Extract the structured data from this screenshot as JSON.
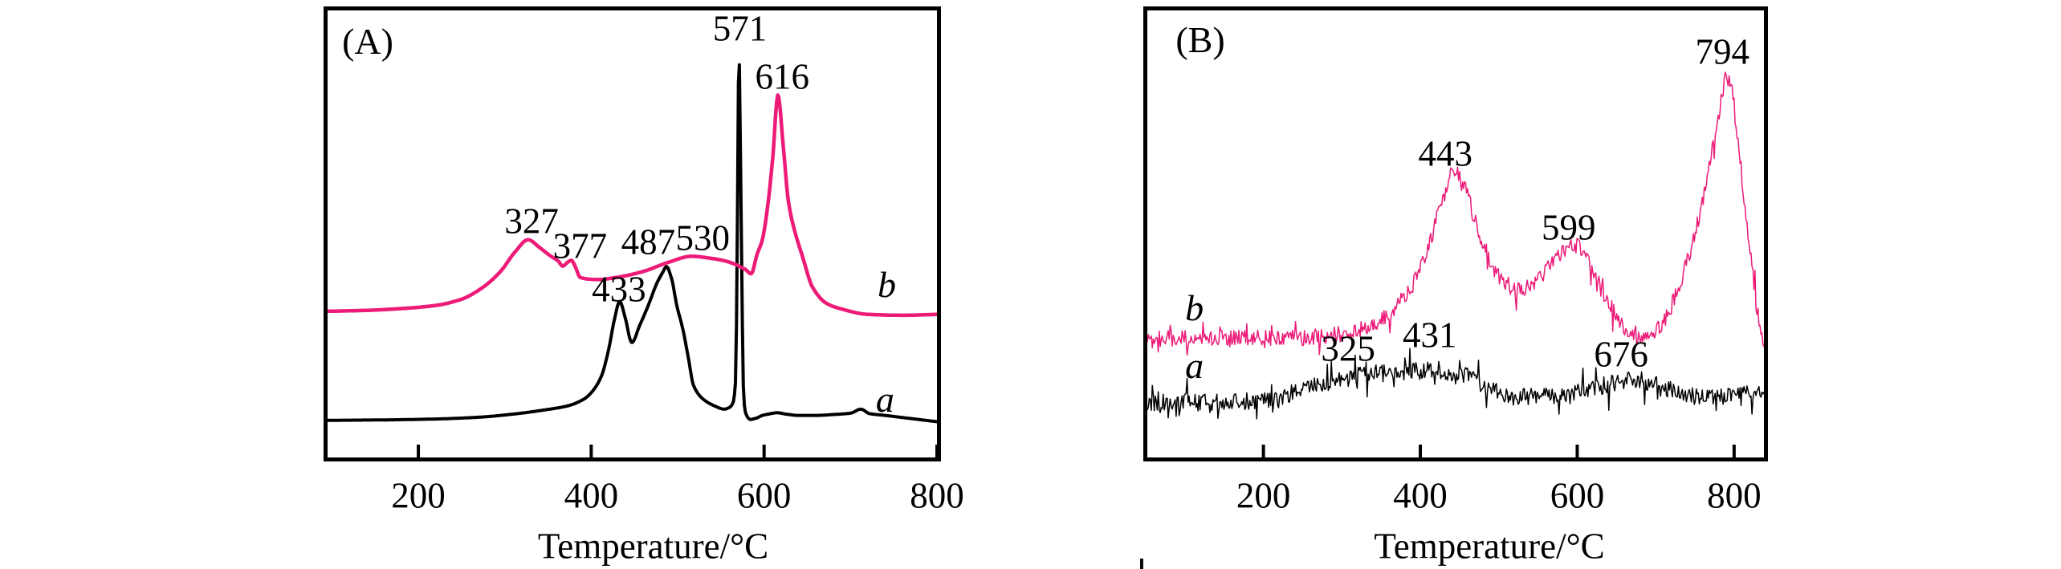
{
  "chart_data": [
    {
      "type": "line",
      "panel_label": "(A)",
      "xlabel": "Temperature/°C",
      "x_ticks": [
        200,
        400,
        600,
        800
      ],
      "x_domain": [
        95,
        800
      ],
      "y_axis": "arbitrary intensity (no axis shown), normalized 0-1",
      "grid": false,
      "legend": "curve letters drawn beside traces",
      "series": [
        {
          "name": "a",
          "color": "#000000",
          "stroke_width": 4,
          "noise": null,
          "peak_temperatures": [
            433,
            487,
            571
          ],
          "points": [
            [
              95,
              0.083
            ],
            [
              160,
              0.084
            ],
            [
              220,
              0.086
            ],
            [
              270,
              0.09
            ],
            [
              310,
              0.097
            ],
            [
              345,
              0.106
            ],
            [
              372,
              0.115
            ],
            [
              392,
              0.131
            ],
            [
              403,
              0.152
            ],
            [
              412,
              0.183
            ],
            [
              420,
              0.24
            ],
            [
              427,
              0.31
            ],
            [
              433,
              0.349
            ],
            [
              439,
              0.315
            ],
            [
              447,
              0.257
            ],
            [
              456,
              0.295
            ],
            [
              466,
              0.34
            ],
            [
              476,
              0.39
            ],
            [
              483,
              0.415
            ],
            [
              487,
              0.427
            ],
            [
              493,
              0.4
            ],
            [
              499,
              0.34
            ],
            [
              506,
              0.287
            ],
            [
              513,
              0.216
            ],
            [
              518,
              0.163
            ],
            [
              528,
              0.133
            ],
            [
              543,
              0.115
            ],
            [
              554,
              0.108
            ],
            [
              560,
              0.112
            ],
            [
              564,
              0.122
            ],
            [
              567,
              0.17
            ],
            [
              569,
              0.5
            ],
            [
              570,
              0.78
            ],
            [
              571,
              0.92
            ],
            [
              572,
              0.78
            ],
            [
              574,
              0.45
            ],
            [
              576,
              0.16
            ],
            [
              578,
              0.103
            ],
            [
              584,
              0.085
            ],
            [
              591,
              0.088
            ],
            [
              598,
              0.094
            ],
            [
              605,
              0.097
            ],
            [
              615,
              0.1
            ],
            [
              625,
              0.097
            ],
            [
              640,
              0.094
            ],
            [
              660,
              0.094
            ],
            [
              680,
              0.096
            ],
            [
              700,
              0.099
            ],
            [
              712,
              0.108
            ],
            [
              722,
              0.098
            ],
            [
              740,
              0.094
            ],
            [
              770,
              0.087
            ],
            [
              800,
              0.08
            ]
          ]
        },
        {
          "name": "b",
          "color": "#ED1A78",
          "stroke_width": 4.5,
          "noise": null,
          "peak_temperatures": [
            327,
            377,
            530,
            616
          ],
          "points": [
            [
              95,
              0.327
            ],
            [
              140,
              0.329
            ],
            [
              180,
              0.333
            ],
            [
              220,
              0.34
            ],
            [
              250,
              0.354
            ],
            [
              275,
              0.381
            ],
            [
              295,
              0.416
            ],
            [
              312,
              0.46
            ],
            [
              327,
              0.487
            ],
            [
              340,
              0.47
            ],
            [
              352,
              0.452
            ],
            [
              362,
              0.439
            ],
            [
              367,
              0.428
            ],
            [
              373,
              0.437
            ],
            [
              377,
              0.441
            ],
            [
              382,
              0.425
            ],
            [
              387,
              0.403
            ],
            [
              397,
              0.399
            ],
            [
              408,
              0.398
            ],
            [
              430,
              0.403
            ],
            [
              460,
              0.416
            ],
            [
              490,
              0.437
            ],
            [
              516,
              0.45
            ],
            [
              540,
              0.445
            ],
            [
              556,
              0.439
            ],
            [
              578,
              0.421
            ],
            [
              585,
              0.411
            ],
            [
              592,
              0.455
            ],
            [
              598,
              0.487
            ],
            [
              604,
              0.56
            ],
            [
              610,
              0.67
            ],
            [
              616,
              0.811
            ],
            [
              622,
              0.7
            ],
            [
              628,
              0.575
            ],
            [
              634,
              0.517
            ],
            [
              645,
              0.446
            ],
            [
              656,
              0.381
            ],
            [
              672,
              0.345
            ],
            [
              688,
              0.333
            ],
            [
              720,
              0.32
            ],
            [
              760,
              0.318
            ],
            [
              800,
              0.32
            ]
          ]
        }
      ],
      "peak_labels": [
        {
          "text": "571",
          "t": 572,
          "y": 0.959
        },
        {
          "text": "616",
          "t": 621,
          "y": 0.851
        },
        {
          "text": "327",
          "t": 331,
          "y": 0.527
        },
        {
          "text": "377",
          "t": 387,
          "y": 0.473
        },
        {
          "text": "487",
          "t": 466,
          "y": 0.481
        },
        {
          "text": "530",
          "t": 529,
          "y": 0.49
        },
        {
          "text": "433",
          "t": 432,
          "y": 0.375
        }
      ],
      "curve_letters": [
        {
          "text": "b",
          "t": 742,
          "y": 0.386
        },
        {
          "text": "a",
          "t": 740,
          "y": 0.129
        }
      ]
    },
    {
      "type": "line",
      "panel_label": "(B)",
      "xlabel": "Temperature/°C",
      "x_ticks": [
        200,
        400,
        600,
        800
      ],
      "x_domain": [
        52,
        838
      ],
      "y_axis": "arbitrary intensity (no axis shown), normalized 0-1",
      "grid": false,
      "legend": "curve letters drawn beside traces",
      "series": [
        {
          "name": "b",
          "color": "#ED1A78",
          "stroke_width": 1.5,
          "noise": {
            "base": 0.018,
            "spike_p": 0.1,
            "spike": 0.038
          },
          "peak_temperatures": [
            443,
            599,
            794
          ],
          "points": [
            [
              52,
              0.266
            ],
            [
              100,
              0.266
            ],
            [
              150,
              0.267
            ],
            [
              200,
              0.268
            ],
            [
              250,
              0.268
            ],
            [
              280,
              0.272
            ],
            [
              310,
              0.28
            ],
            [
              330,
              0.29
            ],
            [
              350,
              0.31
            ],
            [
              370,
              0.34
            ],
            [
              385,
              0.37
            ],
            [
              400,
              0.42
            ],
            [
              413,
              0.487
            ],
            [
              424,
              0.555
            ],
            [
              433,
              0.6
            ],
            [
              443,
              0.645
            ],
            [
              452,
              0.62
            ],
            [
              462,
              0.575
            ],
            [
              472,
              0.52
            ],
            [
              483,
              0.465
            ],
            [
              495,
              0.42
            ],
            [
              508,
              0.39
            ],
            [
              520,
              0.378
            ],
            [
              532,
              0.38
            ],
            [
              545,
              0.392
            ],
            [
              558,
              0.412
            ],
            [
              572,
              0.44
            ],
            [
              585,
              0.462
            ],
            [
              599,
              0.473
            ],
            [
              610,
              0.45
            ],
            [
              621,
              0.415
            ],
            [
              632,
              0.37
            ],
            [
              645,
              0.33
            ],
            [
              658,
              0.295
            ],
            [
              670,
              0.275
            ],
            [
              683,
              0.265
            ],
            [
              695,
              0.272
            ],
            [
              708,
              0.3
            ],
            [
              720,
              0.34
            ],
            [
              732,
              0.395
            ],
            [
              744,
              0.46
            ],
            [
              755,
              0.54
            ],
            [
              765,
              0.625
            ],
            [
              775,
              0.72
            ],
            [
              783,
              0.79
            ],
            [
              790,
              0.852
            ],
            [
              797,
              0.82
            ],
            [
              803,
              0.74
            ],
            [
              810,
              0.627
            ],
            [
              818,
              0.5
            ],
            [
              825,
              0.39
            ],
            [
              831,
              0.31
            ],
            [
              838,
              0.24
            ]
          ]
        },
        {
          "name": "a",
          "color": "#000000",
          "stroke_width": 1.5,
          "noise": {
            "base": 0.02,
            "spike_p": 0.12,
            "spike": 0.045
          },
          "peak_temperatures": [
            325,
            431,
            676
          ],
          "points": [
            [
              52,
              0.124
            ],
            [
              100,
              0.124
            ],
            [
              150,
              0.124
            ],
            [
              195,
              0.126
            ],
            [
              225,
              0.138
            ],
            [
              251,
              0.153
            ],
            [
              275,
              0.166
            ],
            [
              300,
              0.176
            ],
            [
              325,
              0.183
            ],
            [
              350,
              0.188
            ],
            [
              375,
              0.192
            ],
            [
              400,
              0.194
            ],
            [
              420,
              0.195
            ],
            [
              431,
              0.194
            ],
            [
              445,
              0.188
            ],
            [
              462,
              0.179
            ],
            [
              478,
              0.166
            ],
            [
              495,
              0.148
            ],
            [
              515,
              0.137
            ],
            [
              532,
              0.135
            ],
            [
              552,
              0.138
            ],
            [
              572,
              0.142
            ],
            [
              592,
              0.146
            ],
            [
              612,
              0.152
            ],
            [
              632,
              0.16
            ],
            [
              652,
              0.168
            ],
            [
              665,
              0.174
            ],
            [
              676,
              0.176
            ],
            [
              691,
              0.168
            ],
            [
              706,
              0.158
            ],
            [
              722,
              0.148
            ],
            [
              742,
              0.14
            ],
            [
              762,
              0.137
            ],
            [
              792,
              0.137
            ],
            [
              815,
              0.14
            ],
            [
              838,
              0.142
            ]
          ]
        }
      ],
      "peak_labels": [
        {
          "text": "443",
          "t": 432,
          "y": 0.679
        },
        {
          "text": "599",
          "t": 589,
          "y": 0.513
        },
        {
          "text": "794",
          "t": 785,
          "y": 0.906
        },
        {
          "text": "325",
          "t": 308,
          "y": 0.242
        },
        {
          "text": "431",
          "t": 412,
          "y": 0.272
        },
        {
          "text": "676",
          "t": 656,
          "y": 0.229
        }
      ],
      "curve_letters": [
        {
          "text": "b",
          "t": 112,
          "y": 0.334
        },
        {
          "text": "a",
          "t": 112,
          "y": 0.204
        }
      ]
    }
  ],
  "style": {
    "axis_color": "#000000",
    "tick_length": 16,
    "tick_width": 4
  }
}
